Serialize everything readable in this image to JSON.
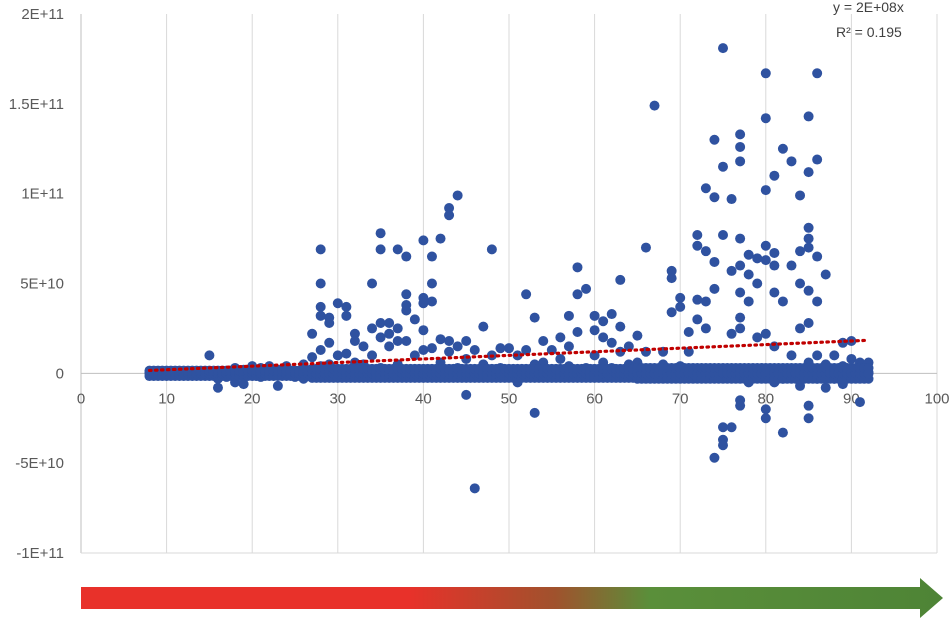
{
  "chart_data": {
    "type": "scatter",
    "title": "",
    "xlabel": "",
    "ylabel": "",
    "xlim": [
      0,
      100
    ],
    "ylim": [
      -100000000000,
      200000000000
    ],
    "x_ticks": [
      0,
      10,
      20,
      30,
      40,
      50,
      60,
      70,
      80,
      90,
      100
    ],
    "x_tick_labels": [
      "0",
      "10",
      "20",
      "30",
      "40",
      "50",
      "60",
      "70",
      "80",
      "90",
      "100"
    ],
    "y_ticks": [
      -100000000000,
      -50000000000,
      0,
      50000000000,
      100000000000,
      150000000000,
      200000000000
    ],
    "y_tick_labels": [
      "-1E+11",
      "-5E+10",
      "0",
      "5E+10",
      "1E+11",
      "1.5E+11",
      "2E+11"
    ],
    "grid": "vertical",
    "legend": "none",
    "trendline": {
      "type": "linear",
      "style": "dotted",
      "color": "#C00000",
      "x_range": [
        8,
        92
      ],
      "slope": 200000000,
      "equation_label": "y = 2E+08x",
      "r2_label": "R² = 0.195"
    },
    "series": [
      {
        "color": "#2F52A0",
        "points": [
          [
            8,
            300000000.0
          ],
          [
            9,
            500000000.0
          ],
          [
            10,
            200000000.0
          ],
          [
            11,
            600000000.0
          ],
          [
            12,
            400000000.0
          ],
          [
            13,
            1000000000.0
          ],
          [
            14,
            800000000.0
          ],
          [
            15,
            10000000000.0
          ],
          [
            15,
            -1000000000.0
          ],
          [
            16,
            -8000000000.0
          ],
          [
            16,
            -3000000000.0
          ],
          [
            17,
            1000000000.0
          ],
          [
            17,
            -2000000000.0
          ],
          [
            18,
            3000000000.0
          ],
          [
            18,
            -5000000000.0
          ],
          [
            19,
            2000000000.0
          ],
          [
            19,
            -6000000000.0
          ],
          [
            20,
            4000000000.0
          ],
          [
            20,
            -1000000000.0
          ],
          [
            21,
            3000000000.0
          ],
          [
            21,
            -2000000000.0
          ],
          [
            22,
            4000000000.0
          ],
          [
            23,
            2000000000.0
          ],
          [
            23,
            -7000000000.0
          ],
          [
            24,
            4000000000.0
          ],
          [
            25,
            1000000000.0
          ],
          [
            25,
            -2000000000.0
          ],
          [
            26,
            5000000000.0
          ],
          [
            26,
            -3000000000.0
          ],
          [
            27,
            9000000000.0
          ],
          [
            27,
            22000000000.0
          ],
          [
            28,
            69000000000.0
          ],
          [
            28,
            50000000000.0
          ],
          [
            28,
            37000000000.0
          ],
          [
            28,
            32000000000.0
          ],
          [
            28,
            13000000000.0
          ],
          [
            28,
            4000000000.0
          ],
          [
            29,
            31000000000.0
          ],
          [
            29,
            28000000000.0
          ],
          [
            29,
            17000000000.0
          ],
          [
            29,
            5000000000.0
          ],
          [
            30,
            39000000000.0
          ],
          [
            30,
            10000000000.0
          ],
          [
            30,
            -2000000000.0
          ],
          [
            31,
            37000000000.0
          ],
          [
            31,
            32000000000.0
          ],
          [
            31,
            11000000000.0
          ],
          [
            32,
            22000000000.0
          ],
          [
            32,
            18000000000.0
          ],
          [
            32,
            6000000000.0
          ],
          [
            33,
            15000000000.0
          ],
          [
            33,
            5000000000.0
          ],
          [
            34,
            50000000000.0
          ],
          [
            34,
            25000000000.0
          ],
          [
            34,
            10000000000.0
          ],
          [
            35,
            78000000000.0
          ],
          [
            35,
            69000000000.0
          ],
          [
            35,
            28000000000.0
          ],
          [
            35,
            20000000000.0
          ],
          [
            35,
            3000000000.0
          ],
          [
            36,
            28000000000.0
          ],
          [
            36,
            22000000000.0
          ],
          [
            36,
            15000000000.0
          ],
          [
            36,
            1000000000.0
          ],
          [
            37,
            69000000000.0
          ],
          [
            37,
            25000000000.0
          ],
          [
            37,
            18000000000.0
          ],
          [
            37,
            5000000000.0
          ],
          [
            38,
            65000000000.0
          ],
          [
            38,
            44000000000.0
          ],
          [
            38,
            38000000000.0
          ],
          [
            38,
            35000000000.0
          ],
          [
            38,
            18000000000.0
          ],
          [
            39,
            30000000000.0
          ],
          [
            39,
            10000000000.0
          ],
          [
            39,
            2000000000.0
          ],
          [
            40,
            74000000000.0
          ],
          [
            40,
            42000000000.0
          ],
          [
            40,
            39000000000.0
          ],
          [
            40,
            24000000000.0
          ],
          [
            40,
            13000000000.0
          ],
          [
            41,
            65000000000.0
          ],
          [
            41,
            50000000000.0
          ],
          [
            41,
            40000000000.0
          ],
          [
            41,
            14000000000.0
          ],
          [
            42,
            75000000000.0
          ],
          [
            42,
            19000000000.0
          ],
          [
            42,
            6000000000.0
          ],
          [
            43,
            92000000000.0
          ],
          [
            43,
            88000000000.0
          ],
          [
            43,
            18000000000.0
          ],
          [
            43,
            12000000000.0
          ],
          [
            44,
            99000000000.0
          ],
          [
            44,
            15000000000.0
          ],
          [
            44,
            3000000000.0
          ],
          [
            45,
            -12000000000.0
          ],
          [
            45,
            18000000000.0
          ],
          [
            45,
            8000000000.0
          ],
          [
            46,
            -64000000000.0
          ],
          [
            46,
            13000000000.0
          ],
          [
            46,
            2000000000.0
          ],
          [
            47,
            26000000000.0
          ],
          [
            47,
            5000000000.0
          ],
          [
            48,
            69000000000.0
          ],
          [
            48,
            10000000000.0
          ],
          [
            49,
            14000000000.0
          ],
          [
            49,
            3000000000.0
          ],
          [
            50,
            14000000000.0
          ],
          [
            50,
            2000000000.0
          ],
          [
            51,
            -5000000000.0
          ],
          [
            51,
            10000000000.0
          ],
          [
            52,
            44000000000.0
          ],
          [
            52,
            13000000000.0
          ],
          [
            53,
            31000000000.0
          ],
          [
            53,
            -22000000000.0
          ],
          [
            53,
            5000000000.0
          ],
          [
            54,
            18000000000.0
          ],
          [
            54,
            6000000000.0
          ],
          [
            55,
            13000000000.0
          ],
          [
            55,
            2000000000.0
          ],
          [
            56,
            20000000000.0
          ],
          [
            56,
            8000000000.0
          ],
          [
            57,
            32000000000.0
          ],
          [
            57,
            15000000000.0
          ],
          [
            57,
            4000000000.0
          ],
          [
            58,
            59000000000.0
          ],
          [
            58,
            44000000000.0
          ],
          [
            58,
            23000000000.0
          ],
          [
            59,
            47000000000.0
          ],
          [
            59,
            3000000000.0
          ],
          [
            60,
            32000000000.0
          ],
          [
            60,
            24000000000.0
          ],
          [
            60,
            10000000000.0
          ],
          [
            61,
            29000000000.0
          ],
          [
            61,
            20000000000.0
          ],
          [
            61,
            6000000000.0
          ],
          [
            62,
            33000000000.0
          ],
          [
            62,
            17000000000.0
          ],
          [
            62,
            3000000000.0
          ],
          [
            63,
            52000000000.0
          ],
          [
            63,
            26000000000.0
          ],
          [
            63,
            12000000000.0
          ],
          [
            64,
            15000000000.0
          ],
          [
            64,
            5000000000.0
          ],
          [
            65,
            21000000000.0
          ],
          [
            65,
            6000000000.0
          ],
          [
            66,
            70000000000.0
          ],
          [
            66,
            12000000000.0
          ],
          [
            67,
            149000000000.0
          ],
          [
            67,
            2000000000.0
          ],
          [
            68,
            12000000000.0
          ],
          [
            68,
            5000000000.0
          ],
          [
            69,
            57000000000.0
          ],
          [
            69,
            53000000000.0
          ],
          [
            69,
            34000000000.0
          ],
          [
            69,
            2000000000.0
          ],
          [
            70,
            42000000000.0
          ],
          [
            70,
            37000000000.0
          ],
          [
            70,
            4000000000.0
          ],
          [
            71,
            23000000000.0
          ],
          [
            71,
            12000000000.0
          ],
          [
            72,
            77000000000.0
          ],
          [
            72,
            71000000000.0
          ],
          [
            72,
            41000000000.0
          ],
          [
            72,
            30000000000.0
          ],
          [
            73,
            103000000000.0
          ],
          [
            73,
            68000000000.0
          ],
          [
            73,
            40000000000.0
          ],
          [
            73,
            25000000000.0
          ],
          [
            74,
            130000000000.0
          ],
          [
            74,
            98000000000.0
          ],
          [
            74,
            62000000000.0
          ],
          [
            74,
            47000000000.0
          ],
          [
            74,
            -47000000000.0
          ],
          [
            75,
            181000000000.0
          ],
          [
            75,
            115000000000.0
          ],
          [
            75,
            77000000000.0
          ],
          [
            75,
            -37000000000.0
          ],
          [
            75,
            -40000000000.0
          ],
          [
            75,
            -30000000000.0
          ],
          [
            76,
            97000000000.0
          ],
          [
            76,
            57000000000.0
          ],
          [
            76,
            22000000000.0
          ],
          [
            76,
            -30000000000.0
          ],
          [
            77,
            133000000000.0
          ],
          [
            77,
            126000000000.0
          ],
          [
            77,
            118000000000.0
          ],
          [
            77,
            75000000000.0
          ],
          [
            77,
            60000000000.0
          ],
          [
            77,
            45000000000.0
          ],
          [
            77,
            31000000000.0
          ],
          [
            77,
            25000000000.0
          ],
          [
            77,
            -15000000000.0
          ],
          [
            77,
            -18000000000.0
          ],
          [
            78,
            66000000000.0
          ],
          [
            78,
            55000000000.0
          ],
          [
            78,
            40000000000.0
          ],
          [
            78,
            -5000000000.0
          ],
          [
            79,
            64000000000.0
          ],
          [
            79,
            50000000000.0
          ],
          [
            79,
            20000000000.0
          ],
          [
            80,
            167000000000.0
          ],
          [
            80,
            142000000000.0
          ],
          [
            80,
            102000000000.0
          ],
          [
            80,
            71000000000.0
          ],
          [
            80,
            63000000000.0
          ],
          [
            80,
            22000000000.0
          ],
          [
            80,
            -20000000000.0
          ],
          [
            80,
            -25000000000.0
          ],
          [
            81,
            110000000000.0
          ],
          [
            81,
            67000000000.0
          ],
          [
            81,
            60000000000.0
          ],
          [
            81,
            45000000000.0
          ],
          [
            81,
            15000000000.0
          ],
          [
            81,
            -5000000000.0
          ],
          [
            82,
            125000000000.0
          ],
          [
            82,
            40000000000.0
          ],
          [
            82,
            -33000000000.0
          ],
          [
            82,
            -3000000000.0
          ],
          [
            83,
            118000000000.0
          ],
          [
            83,
            60000000000.0
          ],
          [
            83,
            10000000000.0
          ],
          [
            84,
            99000000000.0
          ],
          [
            84,
            68000000000.0
          ],
          [
            84,
            50000000000.0
          ],
          [
            84,
            25000000000.0
          ],
          [
            84,
            -7000000000.0
          ],
          [
            85,
            143000000000.0
          ],
          [
            85,
            112000000000.0
          ],
          [
            85,
            81000000000.0
          ],
          [
            85,
            75000000000.0
          ],
          [
            85,
            70000000000.0
          ],
          [
            85,
            46000000000.0
          ],
          [
            85,
            28000000000.0
          ],
          [
            85,
            6000000000.0
          ],
          [
            85,
            -18000000000.0
          ],
          [
            85,
            -25000000000.0
          ],
          [
            86,
            167000000000.0
          ],
          [
            86,
            119000000000.0
          ],
          [
            86,
            65000000000.0
          ],
          [
            86,
            40000000000.0
          ],
          [
            86,
            10000000000.0
          ],
          [
            86,
            -3000000000.0
          ],
          [
            87,
            55000000000.0
          ],
          [
            87,
            5000000000.0
          ],
          [
            87,
            -8000000000.0
          ],
          [
            88,
            10000000000.0
          ],
          [
            88,
            -3000000000.0
          ],
          [
            89,
            17000000000.0
          ],
          [
            89,
            4000000000.0
          ],
          [
            89,
            -6000000000.0
          ],
          [
            90,
            18000000000.0
          ],
          [
            90,
            8000000000.0
          ],
          [
            90,
            -2000000000.0
          ],
          [
            91,
            -16000000000.0
          ],
          [
            91,
            6000000000.0
          ],
          [
            91,
            2000000000.0
          ],
          [
            92,
            6000000000.0
          ],
          [
            92,
            500000000.0
          ]
        ]
      }
    ]
  },
  "bottom_arrow": {
    "gradient_colors": [
      "#E8312A",
      "#E8312A",
      "#A0522D",
      "#5A8F3A",
      "#4E8436"
    ]
  }
}
